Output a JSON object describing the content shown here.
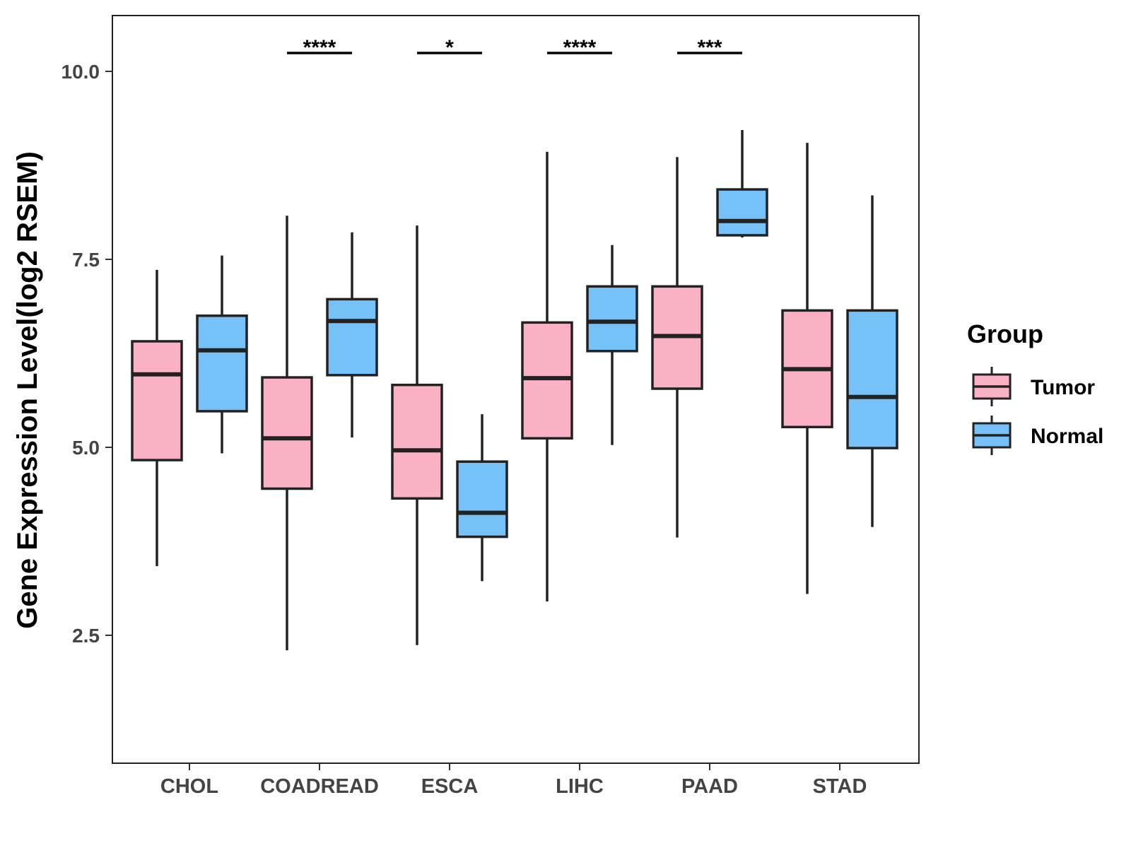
{
  "chart_data": {
    "type": "boxplot",
    "title": "",
    "xlabel": "",
    "ylabel": "Gene Expression Level(log2 RSEM)",
    "ylim": [
      1.0,
      10.7
    ],
    "yticks": [
      2.5,
      5.0,
      7.5,
      10.0
    ],
    "ytick_labels": [
      "2.5",
      "5.0",
      "7.5",
      "10.0"
    ],
    "categories": [
      "CHOL",
      "COADREAD",
      "ESCA",
      "LIHC",
      "PAAD",
      "STAD"
    ],
    "legend": {
      "title": "Group",
      "position": "right",
      "entries": [
        {
          "name": "Tumor",
          "color": "#fab1c3"
        },
        {
          "name": "Normal",
          "color": "#76c1f7"
        }
      ]
    },
    "series": [
      {
        "name": "Tumor",
        "color": "#fab1c3",
        "boxes": [
          {
            "category": "CHOL",
            "min": 3.42,
            "q1": 4.83,
            "median": 5.97,
            "q3": 6.41,
            "max": 7.36
          },
          {
            "category": "COADREAD",
            "min": 2.3,
            "q1": 4.45,
            "median": 5.12,
            "q3": 5.93,
            "max": 8.08
          },
          {
            "category": "ESCA",
            "min": 2.37,
            "q1": 4.32,
            "median": 4.96,
            "q3": 5.83,
            "max": 7.95
          },
          {
            "category": "LIHC",
            "min": 2.95,
            "q1": 5.12,
            "median": 5.92,
            "q3": 6.66,
            "max": 8.93
          },
          {
            "category": "PAAD",
            "min": 3.8,
            "q1": 5.78,
            "median": 6.48,
            "q3": 7.14,
            "max": 8.86
          },
          {
            "category": "STAD",
            "min": 3.05,
            "q1": 5.27,
            "median": 6.04,
            "q3": 6.82,
            "max": 9.05
          }
        ]
      },
      {
        "name": "Normal",
        "color": "#76c1f7",
        "boxes": [
          {
            "category": "CHOL",
            "min": 4.92,
            "q1": 5.48,
            "median": 6.29,
            "q3": 6.75,
            "max": 7.55
          },
          {
            "category": "COADREAD",
            "min": 5.13,
            "q1": 5.96,
            "median": 6.68,
            "q3": 6.97,
            "max": 7.86
          },
          {
            "category": "ESCA",
            "min": 3.22,
            "q1": 3.81,
            "median": 4.13,
            "q3": 4.81,
            "max": 5.44
          },
          {
            "category": "LIHC",
            "min": 5.03,
            "q1": 6.28,
            "median": 6.67,
            "q3": 7.14,
            "max": 7.69
          },
          {
            "category": "PAAD",
            "min": 7.79,
            "q1": 7.82,
            "median": 8.01,
            "q3": 8.43,
            "max": 9.22
          },
          {
            "category": "STAD",
            "min": 3.94,
            "q1": 4.99,
            "median": 5.67,
            "q3": 6.82,
            "max": 8.35
          }
        ]
      }
    ],
    "significance": [
      {
        "category": "COADREAD",
        "label": "****"
      },
      {
        "category": "ESCA",
        "label": "*"
      },
      {
        "category": "LIHC",
        "label": "****"
      },
      {
        "category": "PAAD",
        "label": "***"
      }
    ]
  }
}
